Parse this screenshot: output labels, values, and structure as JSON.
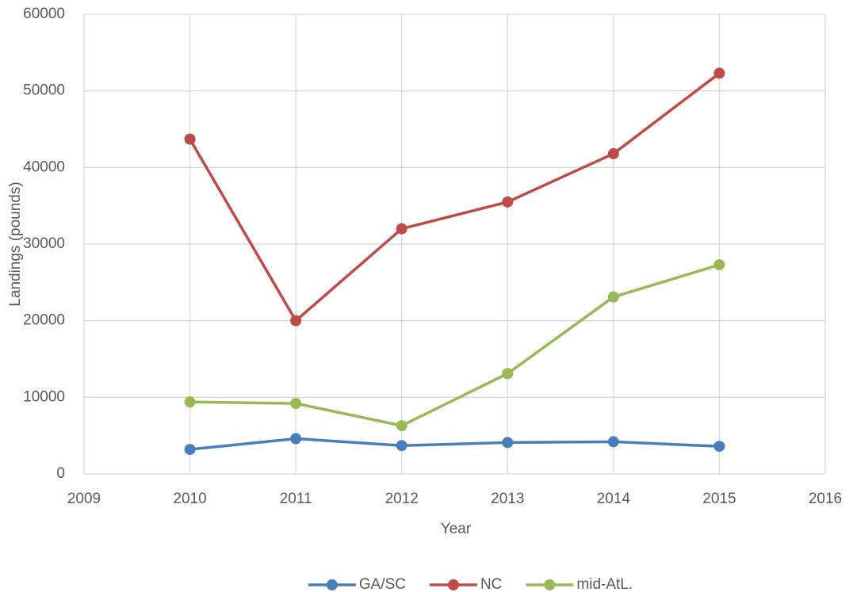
{
  "chart_data": {
    "type": "line",
    "x_label": "Year",
    "y_label": "Landings (pounds)",
    "x": [
      2010,
      2011,
      2012,
      2013,
      2014,
      2015
    ],
    "series": [
      {
        "name": "GA/SC",
        "color": "#4a7ebb",
        "values": [
          3200,
          4600,
          3700,
          4100,
          4200,
          3600
        ]
      },
      {
        "name": "NC",
        "color": "#be4b48",
        "values": [
          43700,
          20000,
          32000,
          35500,
          41800,
          52300
        ]
      },
      {
        "name": "mid-AtL.",
        "color": "#98b954",
        "values": [
          9400,
          9200,
          6300,
          13100,
          23100,
          27300
        ]
      }
    ],
    "xlim": [
      2009,
      2016
    ],
    "xticks": [
      2009,
      2010,
      2011,
      2012,
      2013,
      2014,
      2015,
      2016
    ],
    "ylim": [
      0,
      60000
    ],
    "yticks": [
      0,
      10000,
      20000,
      30000,
      40000,
      50000,
      60000
    ],
    "grid": true,
    "legend": "bottom"
  }
}
